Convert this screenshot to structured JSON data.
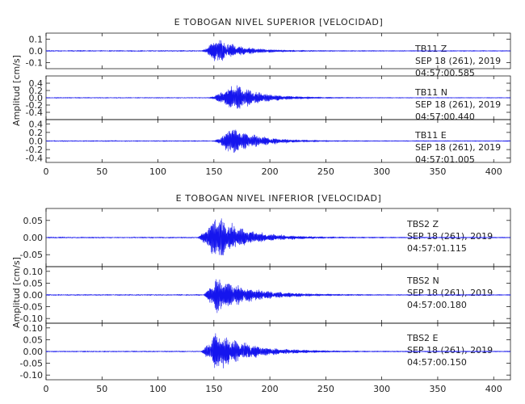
{
  "colors": {
    "trace": "#1515ee",
    "axis": "#000000",
    "text": "#222222"
  },
  "chart_data": [
    {
      "type": "line",
      "title": "E TOBOGAN NIVEL SUPERIOR [VELOCIDAD]",
      "ylabel": "Amplitud [cm/s]",
      "xlim": [
        0,
        415
      ],
      "x_ticks": [
        0,
        50,
        100,
        150,
        200,
        250,
        300,
        350,
        400
      ],
      "series": [
        {
          "name": "TB11   Z",
          "date": "SEP 18 (261), 2019",
          "time": "04:57:00.585",
          "ylim": [
            -0.15,
            0.15
          ],
          "y_ticks": [
            -0.1,
            0.0,
            0.1
          ],
          "onset": 139,
          "peak_time": 152,
          "peak_amplitude": 0.12,
          "decay_end": 215,
          "noise": 0.004
        },
        {
          "name": "TB11   N",
          "date": "SEP 18 (261), 2019",
          "time": "04:57:00.440",
          "ylim": [
            -0.6,
            0.6
          ],
          "y_ticks": [
            -0.4,
            -0.2,
            0.0,
            0.2,
            0.4
          ],
          "onset": 145,
          "peak_time": 168,
          "peak_amplitude": 0.42,
          "decay_end": 240,
          "noise": 0.01
        },
        {
          "name": "TB11   E",
          "date": "SEP 18 (261), 2019",
          "time": "04:57:01.005",
          "ylim": [
            -0.5,
            0.5
          ],
          "y_ticks": [
            -0.4,
            -0.2,
            0.0,
            0.2,
            0.4
          ],
          "onset": 150,
          "peak_time": 165,
          "peak_amplitude": 0.38,
          "decay_end": 235,
          "noise": 0.01
        }
      ]
    },
    {
      "type": "line",
      "title": "E TOBOGAN NIVEL INFERIOR [VELOCIDAD]",
      "ylabel": "Amplitud [cm/s]",
      "xlim": [
        0,
        415
      ],
      "x_ticks": [
        0,
        50,
        100,
        150,
        200,
        250,
        300,
        350,
        400
      ],
      "series": [
        {
          "name": "TBS2   Z",
          "date": "SEP 18 (261), 2019",
          "time": "04:57:01.115",
          "ylim": [
            -0.085,
            0.085
          ],
          "y_ticks": [
            -0.05,
            0.0,
            0.05
          ],
          "onset": 135,
          "peak_time": 152,
          "peak_amplitude": 0.072,
          "decay_end": 230,
          "noise": 0.0015
        },
        {
          "name": "TBS2   N",
          "date": "SEP 18 (261), 2019",
          "time": "04:57:00.180",
          "ylim": [
            -0.12,
            0.12
          ],
          "y_ticks": [
            -0.1,
            -0.05,
            0.0,
            0.05,
            0.1
          ],
          "onset": 140,
          "peak_time": 152,
          "peak_amplitude": 0.085,
          "decay_end": 240,
          "noise": 0.002
        },
        {
          "name": "TBS2   E",
          "date": "SEP 18 (261), 2019",
          "time": "04:57:00.150",
          "ylim": [
            -0.12,
            0.12
          ],
          "y_ticks": [
            -0.1,
            -0.05,
            0.0,
            0.05,
            0.1
          ],
          "onset": 138,
          "peak_time": 152,
          "peak_amplitude": 0.09,
          "decay_end": 240,
          "noise": 0.002
        }
      ]
    }
  ]
}
